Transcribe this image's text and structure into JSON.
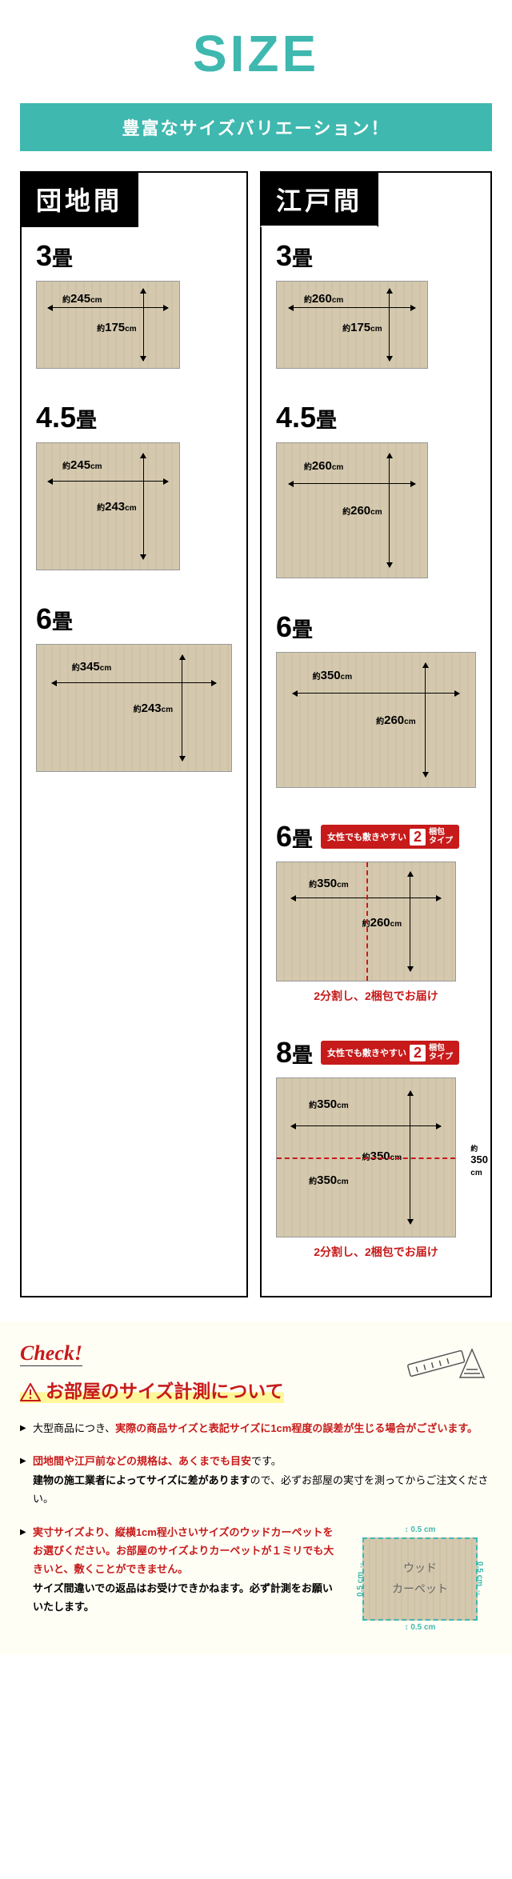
{
  "header": {
    "title": "SIZE",
    "subtitle": "豊富なサイズバリエーション！"
  },
  "columns": [
    {
      "name": "団地間",
      "items": [
        {
          "tatami": "3",
          "unit": "畳",
          "w": "245",
          "h": "175",
          "matW": 180,
          "matH": 110
        },
        {
          "tatami": "4.5",
          "unit": "畳",
          "w": "245",
          "h": "243",
          "matW": 180,
          "matH": 160
        },
        {
          "tatami": "6",
          "unit": "畳",
          "w": "345",
          "h": "243",
          "matW": 245,
          "matH": 160
        }
      ]
    },
    {
      "name": "江戸間",
      "items": [
        {
          "tatami": "3",
          "unit": "畳",
          "w": "260",
          "h": "175",
          "matW": 190,
          "matH": 110
        },
        {
          "tatami": "4.5",
          "unit": "畳",
          "w": "260",
          "h": "260",
          "matW": 190,
          "matH": 170
        },
        {
          "tatami": "6",
          "unit": "畳",
          "w": "350",
          "h": "260",
          "matW": 250,
          "matH": 170
        },
        {
          "tatami": "6",
          "unit": "畳",
          "w": "350",
          "h": "260",
          "matW": 225,
          "matH": 150,
          "split": "v",
          "splitNote": "2分割し、2梱包でお届け",
          "badge": {
            "pre": "女性でも敷きやすい",
            "num": "2",
            "post": "梱包\nタイプ"
          }
        },
        {
          "tatami": "8",
          "unit": "畳",
          "w": "350",
          "h": "350",
          "matW": 225,
          "matH": 200,
          "split": "h",
          "extH": "350",
          "splitW2": "350",
          "splitNote": "2分割し、2梱包でお届け",
          "badge": {
            "pre": "女性でも敷きやすい",
            "num": "2",
            "post": "梱包\nタイプ"
          }
        }
      ]
    }
  ],
  "dimPrefix": "約",
  "dimUnit": "cm",
  "check": {
    "label": "Check!",
    "title": "お部屋のサイズ計測について",
    "points": [
      {
        "html": "大型商品につき、<span class='red'>実際の商品サイズと表記サイズに1cm程度の誤差が生じる場合がございます。</span>"
      },
      {
        "html": "<span class='red'>団地間や江戸前などの規格は、あくまでも目安</span>です。<br><span class='bold'>建物の施工業者によってサイズに差があります</span>ので、必ずお部屋の実寸を測ってからご注文ください。"
      },
      {
        "html": "<span class='red'>実寸サイズより、縦横1cm程小さいサイズのウッドカーペットをお選びください。お部屋のサイズよりカーペットが１ミリでも大きいと、敷くことができません。</span><br><span class='bold'>サイズ間違いでの返品はお受けできかねます。必ず計測をお願いいたします。</span>",
        "diagram": true
      }
    ],
    "carpet": {
      "label1": "ウッド",
      "label2": "カーペット",
      "gap": "0.5 cm"
    }
  },
  "colors": {
    "accent": "#3fb8af",
    "red": "#c71a1a",
    "mat": "#d4c8ae"
  }
}
